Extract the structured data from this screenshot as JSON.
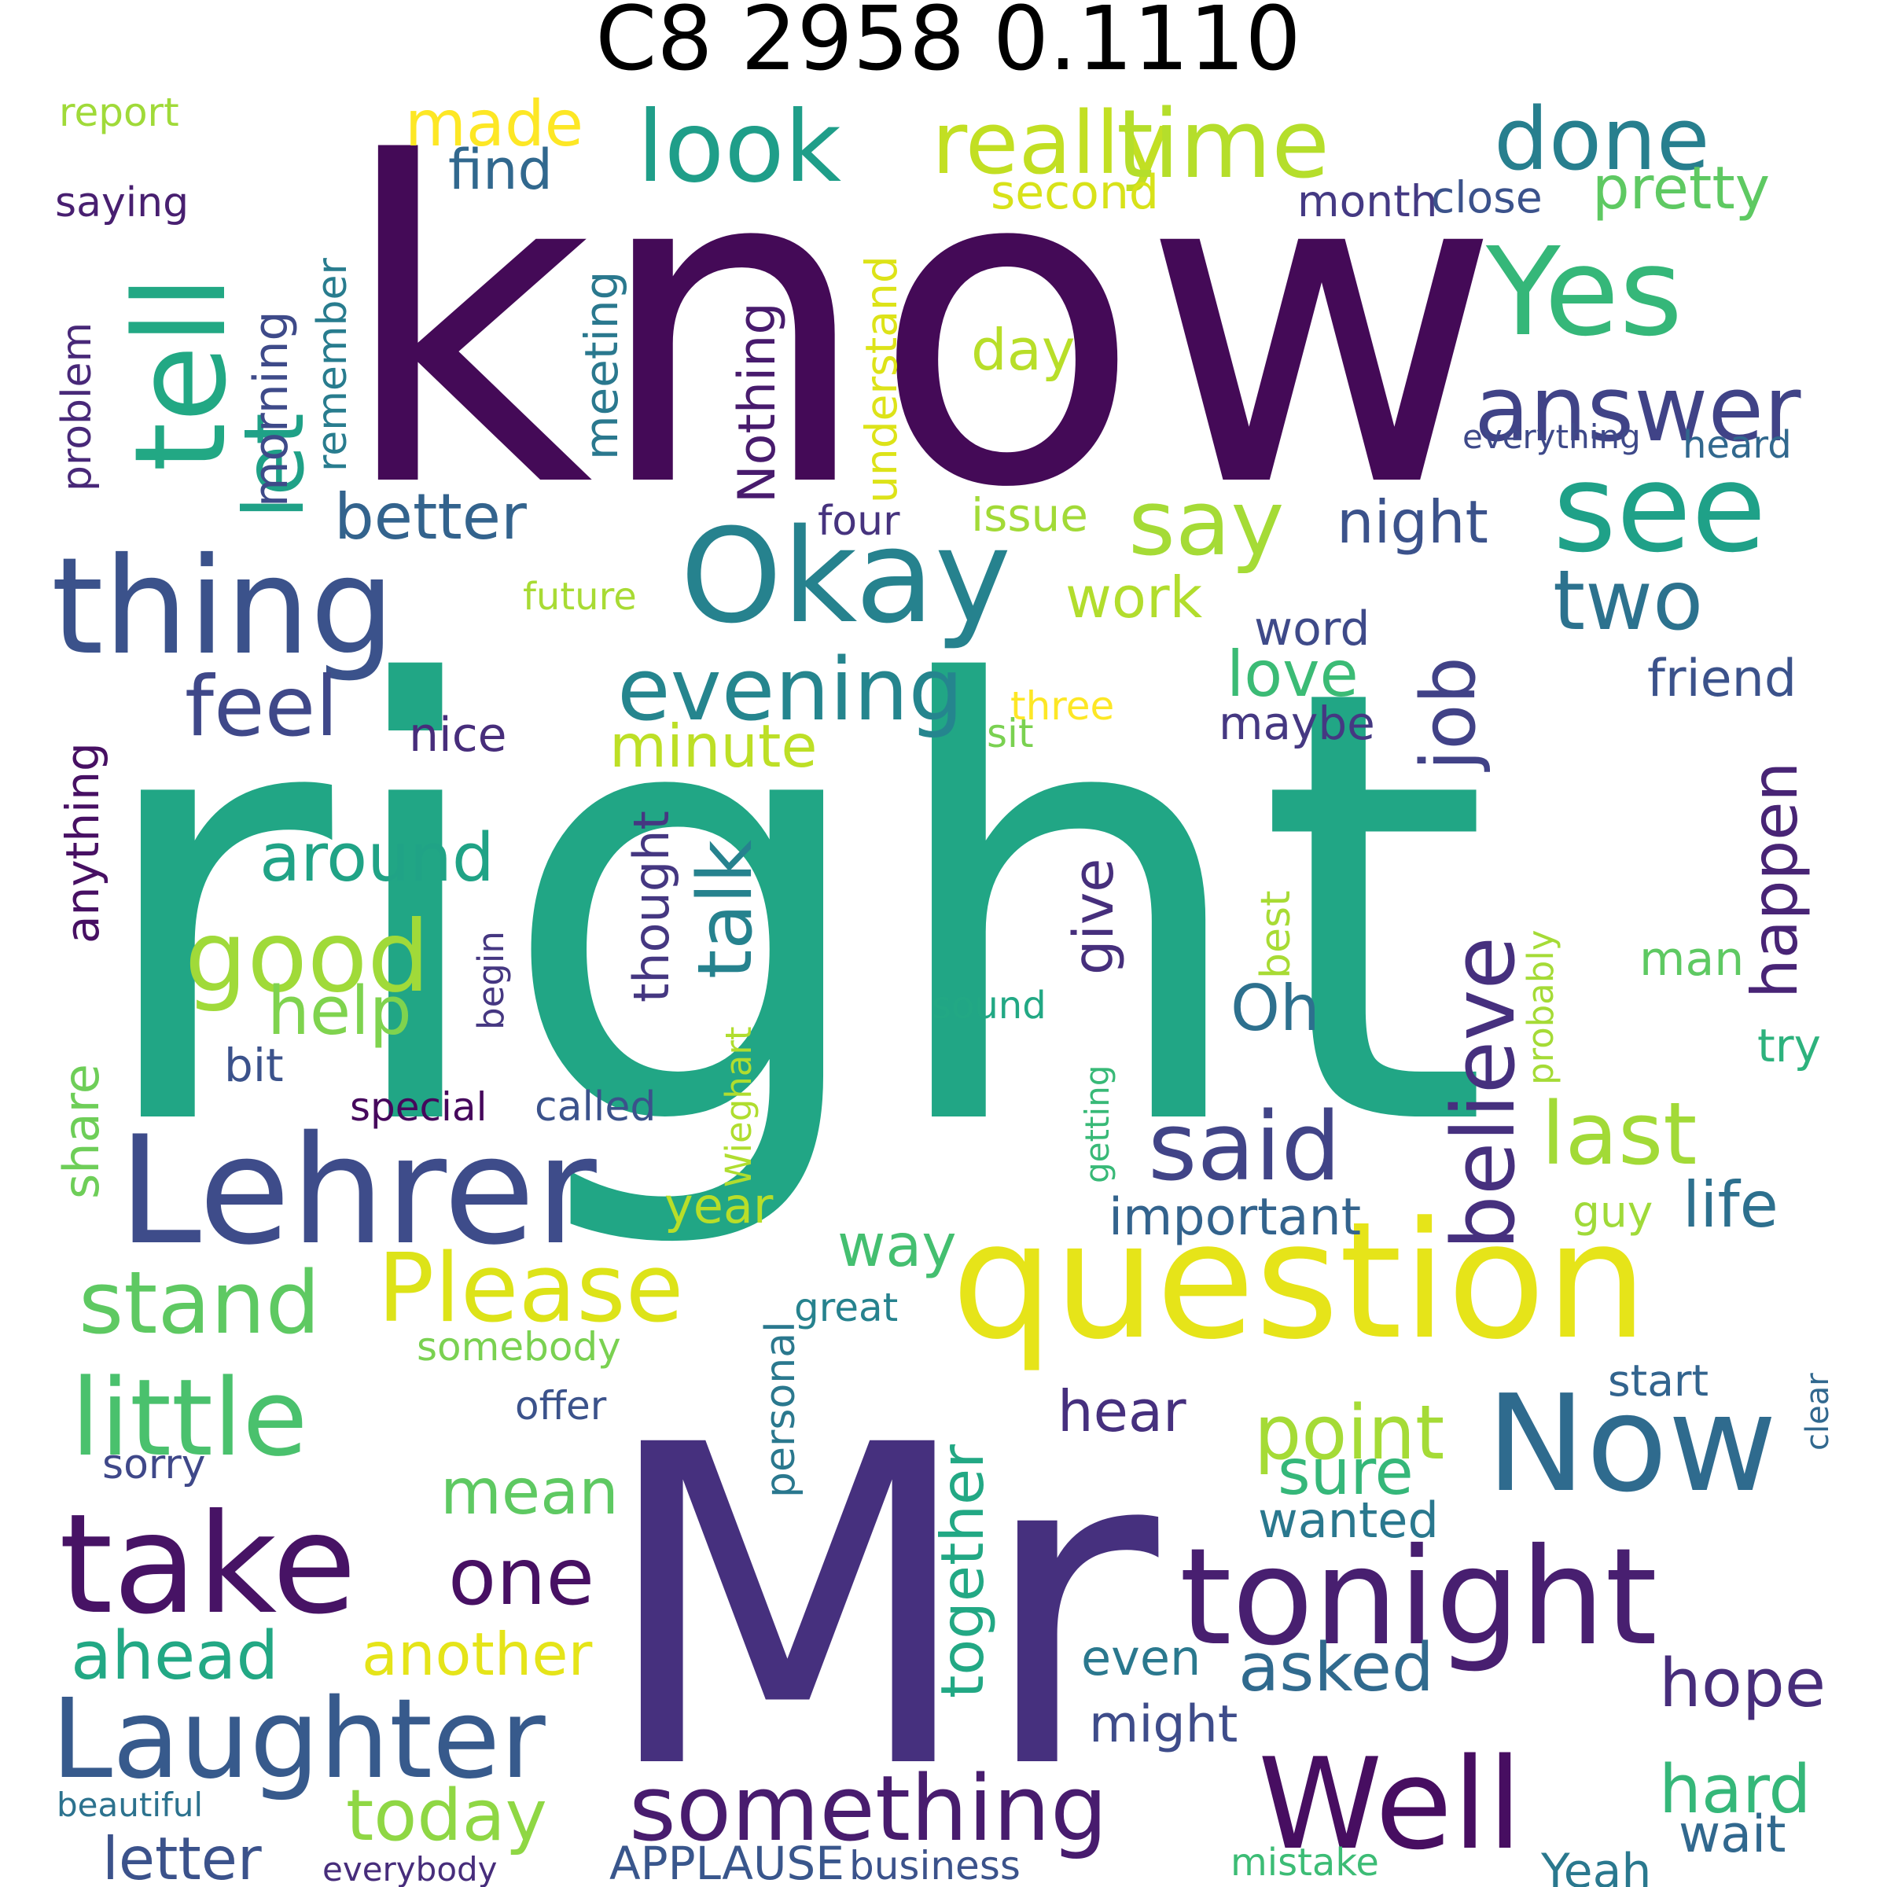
{
  "title": "C8 2958 0.1110",
  "colors": {
    "c0": "#440154",
    "c1": "#46327e",
    "c2": "#365c8d",
    "c3": "#277f8e",
    "c4": "#1fa187",
    "c5": "#4ac16d",
    "c6": "#a0da39",
    "c7": "#fde725"
  },
  "words": [
    {
      "text": "right",
      "color": "#21a685"
    },
    {
      "text": "know",
      "color": "#440a57"
    },
    {
      "text": "Mr",
      "color": "#46307e"
    },
    {
      "text": "question",
      "color": "#e6e419"
    },
    {
      "text": "Lehrer",
      "color": "#3e4c8a"
    },
    {
      "text": "thing",
      "color": "#3b528b"
    },
    {
      "text": "Okay",
      "color": "#26828e"
    },
    {
      "text": "tell",
      "color": "#22a884"
    },
    {
      "text": "look",
      "color": "#1f9e89"
    },
    {
      "text": "really",
      "color": "#c2df23"
    },
    {
      "text": "time",
      "color": "#b5de2b"
    },
    {
      "text": "done",
      "color": "#277f8e"
    },
    {
      "text": "Yes",
      "color": "#35b779"
    },
    {
      "text": "see",
      "color": "#1fa188"
    },
    {
      "text": "answer",
      "color": "#404387"
    },
    {
      "text": "say",
      "color": "#a5db36"
    },
    {
      "text": "two",
      "color": "#2c728e"
    },
    {
      "text": "pretty",
      "color": "#5ec962"
    },
    {
      "text": "let",
      "color": "#1fa187"
    },
    {
      "text": "made",
      "color": "#fde725"
    },
    {
      "text": "report",
      "color": "#a0da39"
    },
    {
      "text": "saying",
      "color": "#481f70"
    },
    {
      "text": "find",
      "color": "#31688e"
    },
    {
      "text": "second",
      "color": "#d8e219"
    },
    {
      "text": "month",
      "color": "#443983"
    },
    {
      "text": "close",
      "color": "#3b528b"
    },
    {
      "text": "problem",
      "color": "#482878"
    },
    {
      "text": "morning",
      "color": "#3e4a89"
    },
    {
      "text": "remember",
      "color": "#287c8e"
    },
    {
      "text": "meeting",
      "color": "#2a788e"
    },
    {
      "text": "Nothing",
      "color": "#481b6d"
    },
    {
      "text": "understand",
      "color": "#dde318"
    },
    {
      "text": "day",
      "color": "#b8de29"
    },
    {
      "text": "everything",
      "color": "#3e4989"
    },
    {
      "text": "heard",
      "color": "#31688e"
    },
    {
      "text": "better",
      "color": "#33638d"
    },
    {
      "text": "four",
      "color": "#46337e"
    },
    {
      "text": "issue",
      "color": "#a2da37"
    },
    {
      "text": "night",
      "color": "#3b528b"
    },
    {
      "text": "future",
      "color": "#a8db34"
    },
    {
      "text": "work",
      "color": "#b2dd2d"
    },
    {
      "text": "word",
      "color": "#3e4a89"
    },
    {
      "text": "job",
      "color": "#414287"
    },
    {
      "text": "feel",
      "color": "#3f4889"
    },
    {
      "text": "evening",
      "color": "#25858e"
    },
    {
      "text": "love",
      "color": "#3bbb75"
    },
    {
      "text": "friend",
      "color": "#3b528b"
    },
    {
      "text": "three",
      "color": "#fde725"
    },
    {
      "text": "sit",
      "color": "#7ad151"
    },
    {
      "text": "maybe",
      "color": "#453882"
    },
    {
      "text": "nice",
      "color": "#472d7b"
    },
    {
      "text": "minute",
      "color": "#bddf26"
    },
    {
      "text": "anything",
      "color": "#471063"
    },
    {
      "text": "around",
      "color": "#20a386"
    },
    {
      "text": "talk",
      "color": "#26828e"
    },
    {
      "text": "happen",
      "color": "#482475"
    },
    {
      "text": "good",
      "color": "#a0da39"
    },
    {
      "text": "give",
      "color": "#462f7c"
    },
    {
      "text": "believe",
      "color": "#46307e"
    },
    {
      "text": "thought",
      "color": "#453781"
    },
    {
      "text": "help",
      "color": "#7fd34e"
    },
    {
      "text": "Oh",
      "color": "#2d708e"
    },
    {
      "text": "best",
      "color": "#a8db34"
    },
    {
      "text": "man",
      "color": "#5ec962"
    },
    {
      "text": "begin",
      "color": "#453781"
    },
    {
      "text": "sound",
      "color": "#22a884"
    },
    {
      "text": "probably",
      "color": "#a5db36"
    },
    {
      "text": "try",
      "color": "#2db27d"
    },
    {
      "text": "bit",
      "color": "#3b528b"
    },
    {
      "text": "share",
      "color": "#6ece58"
    },
    {
      "text": "Wieghart",
      "color": "#b0dd2f"
    },
    {
      "text": "getting",
      "color": "#38b977"
    },
    {
      "text": "special",
      "color": "#46085c"
    },
    {
      "text": "called",
      "color": "#3b528b"
    },
    {
      "text": "said",
      "color": "#414487"
    },
    {
      "text": "last",
      "color": "#a2da37"
    },
    {
      "text": "important",
      "color": "#33638d"
    },
    {
      "text": "life",
      "color": "#2d708e"
    },
    {
      "text": "year",
      "color": "#b8de29"
    },
    {
      "text": "guy",
      "color": "#a0da39"
    },
    {
      "text": "way",
      "color": "#44bf70"
    },
    {
      "text": "Please",
      "color": "#dde318"
    },
    {
      "text": "stand",
      "color": "#5ec962"
    },
    {
      "text": "little",
      "color": "#4ac16d"
    },
    {
      "text": "somebody",
      "color": "#7ad151"
    },
    {
      "text": "great",
      "color": "#26828e"
    },
    {
      "text": "personal",
      "color": "#2a788e"
    },
    {
      "text": "offer",
      "color": "#3b528b"
    },
    {
      "text": "start",
      "color": "#32648e"
    },
    {
      "text": "clear",
      "color": "#31688e"
    },
    {
      "text": "Now",
      "color": "#2f6b8e"
    },
    {
      "text": "take",
      "color": "#471365"
    },
    {
      "text": "sorry",
      "color": "#3f4889"
    },
    {
      "text": "point",
      "color": "#a5db36"
    },
    {
      "text": "sure",
      "color": "#35b779"
    },
    {
      "text": "hear",
      "color": "#46307e"
    },
    {
      "text": "mean",
      "color": "#5ec962"
    },
    {
      "text": "wanted",
      "color": "#2a788e"
    },
    {
      "text": "together",
      "color": "#22a884"
    },
    {
      "text": "tonight",
      "color": "#481f70"
    },
    {
      "text": "one",
      "color": "#471063"
    },
    {
      "text": "ahead",
      "color": "#22a884"
    },
    {
      "text": "another",
      "color": "#e5e419"
    },
    {
      "text": "even",
      "color": "#2a788e"
    },
    {
      "text": "asked",
      "color": "#306a8e"
    },
    {
      "text": "hope",
      "color": "#472d7b"
    },
    {
      "text": "Laughter",
      "color": "#375a8c"
    },
    {
      "text": "might",
      "color": "#3e4c8a"
    },
    {
      "text": "something",
      "color": "#481c6e"
    },
    {
      "text": "today",
      "color": "#8fd744"
    },
    {
      "text": "Well",
      "color": "#470e61"
    },
    {
      "text": "hard",
      "color": "#35b779"
    },
    {
      "text": "letter",
      "color": "#3b528b"
    },
    {
      "text": "APPLAUSE",
      "color": "#39568c"
    },
    {
      "text": "business",
      "color": "#3b528b"
    },
    {
      "text": "beautiful",
      "color": "#2c728e"
    },
    {
      "text": "everybody",
      "color": "#472d7b"
    },
    {
      "text": "mistake",
      "color": "#3cbc75"
    },
    {
      "text": "Yeah",
      "color": "#2a788e"
    },
    {
      "text": "wait",
      "color": "#31688e"
    }
  ]
}
